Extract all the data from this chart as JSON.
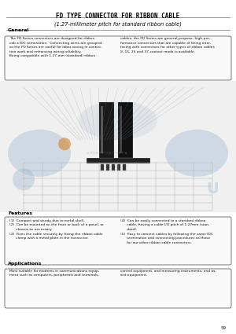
{
  "title_line1": "FD TYPE CONNECTOR FOR RIBBON CABLE",
  "title_line2": "(1.27-millimeter pitch for standard ribbon cable)",
  "section_general": "General",
  "general_text_left": "The FD Series connectors are designed for ribbon\ncab a IDC termination.  Connecting wires are grouped,\nso the FD Series are useful for labor-saving in connec-\ntion work and enhancing wiring reliability.\nBeing compatible with 1.27-mm (standard) ribbon",
  "general_text_right": "cables, the FD Series are general-purpose, high-per-\nformance connectors that are capable of being inter-\nfacing with connectors for other types of ribbon cables\n9, 15, 25 and 37-contact mode is available.",
  "section_features": "Features",
  "features_left": "(1)  Compact and sturdy due to metal shell.\n(2)  Can be mounted on the front or back of a panel, or\n      chassis as necessary.\n(3)  Fixes the cable securely by fixing the ribbon cable\n      clamp with a metal plate in the connector.",
  "features_right": "(4)  Can be easily connected to a standard ribbon\n      cable, having a cable I/O pitch of 1.27mm (stan-\n      dard).\n(5)  Easy to connect cables by following the same IDC\n      termination and connecting procedures as those\n      for our other ribbon cable connectors.",
  "section_applications": "Applications",
  "app_left": "Most suitable for modems in communications equip-\nment such as computers, peripherals and terminals,",
  "app_right": "control equipment, and measuring instruments, and as-\nsist equipment.",
  "page_number": "59",
  "bg_color": "#ffffff",
  "text_color": "#111111",
  "title_color": "#000000",
  "separator_color": "#666666"
}
